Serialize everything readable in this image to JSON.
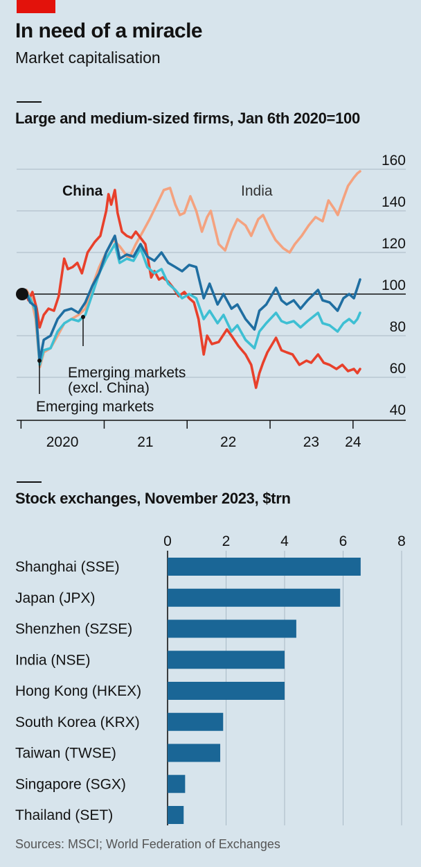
{
  "header": {
    "title": "In need of a miracle",
    "subtitle": "Market capitalisation"
  },
  "line_panel": {
    "title": "Large and medium-sized firms, Jan 6th 2020=100"
  },
  "bar_panel": {
    "title": "Stock exchanges, November 2023, $trn"
  },
  "footer": {
    "source": "Sources: MSCI; World Federation of Exchanges"
  },
  "colors": {
    "china": "#e8402b",
    "india": "#f4a27f",
    "em": "#1f6ea1",
    "em_ex_china": "#3ebfd3",
    "bar": "#1a6696",
    "grid": "#a8b9c5",
    "background": "#d7e4ec"
  },
  "chart_data": [
    {
      "type": "line",
      "title": "Large and medium-sized firms, Jan 6th 2020=100",
      "ylim": [
        40,
        160
      ],
      "yticks": [
        40,
        60,
        80,
        100,
        120,
        140,
        160
      ],
      "ytick_labels": [
        "40",
        "60",
        "80",
        "100",
        "120",
        "140",
        "160"
      ],
      "xlim": [
        "2020-01-06",
        "2024-02-01"
      ],
      "xtick_labels": [
        "2020",
        "21",
        "22",
        "23",
        "24"
      ],
      "base_value": 100,
      "series": [
        {
          "name": "China",
          "color_key": "china",
          "points": [
            [
              "2020-01-06",
              100
            ],
            [
              "2020-01-20",
              101
            ],
            [
              "2020-02-03",
              97
            ],
            [
              "2020-02-20",
              101
            ],
            [
              "2020-03-10",
              93
            ],
            [
              "2020-03-23",
              84
            ],
            [
              "2020-04-10",
              90
            ],
            [
              "2020-05-01",
              93
            ],
            [
              "2020-05-25",
              92
            ],
            [
              "2020-06-15",
              99
            ],
            [
              "2020-07-09",
              117
            ],
            [
              "2020-07-25",
              112
            ],
            [
              "2020-08-15",
              113
            ],
            [
              "2020-09-05",
              115
            ],
            [
              "2020-09-25",
              110
            ],
            [
              "2020-10-20",
              120
            ],
            [
              "2020-11-20",
              125
            ],
            [
              "2020-12-15",
              128
            ],
            [
              "2021-01-10",
              140
            ],
            [
              "2021-01-20",
              148
            ],
            [
              "2021-02-01",
              143
            ],
            [
              "2021-02-17",
              150
            ],
            [
              "2021-03-01",
              139
            ],
            [
              "2021-03-20",
              130
            ],
            [
              "2021-04-10",
              128
            ],
            [
              "2021-05-01",
              127
            ],
            [
              "2021-05-20",
              130
            ],
            [
              "2021-06-10",
              127
            ],
            [
              "2021-07-01",
              124
            ],
            [
              "2021-07-27",
              108
            ],
            [
              "2021-08-10",
              111
            ],
            [
              "2021-08-30",
              107
            ],
            [
              "2021-09-15",
              108
            ],
            [
              "2021-10-10",
              106
            ],
            [
              "2021-11-01",
              103
            ],
            [
              "2021-11-25",
              99
            ],
            [
              "2021-12-20",
              101
            ],
            [
              "2022-01-10",
              98
            ],
            [
              "2022-01-31",
              96
            ],
            [
              "2022-02-20",
              88
            ],
            [
              "2022-03-15",
              71
            ],
            [
              "2022-03-30",
              80
            ],
            [
              "2022-04-20",
              76
            ],
            [
              "2022-05-20",
              77
            ],
            [
              "2022-06-25",
              83
            ],
            [
              "2022-07-15",
              80
            ],
            [
              "2022-08-15",
              75
            ],
            [
              "2022-09-15",
              71
            ],
            [
              "2022-10-10",
              66
            ],
            [
              "2022-10-31",
              55
            ],
            [
              "2022-11-15",
              62
            ],
            [
              "2022-12-01",
              67
            ],
            [
              "2022-12-20",
              72
            ],
            [
              "2023-01-27",
              79
            ],
            [
              "2023-02-20",
              73
            ],
            [
              "2023-03-15",
              72
            ],
            [
              "2023-04-10",
              71
            ],
            [
              "2023-05-10",
              66
            ],
            [
              "2023-06-10",
              68
            ],
            [
              "2023-07-01",
              67
            ],
            [
              "2023-07-31",
              71
            ],
            [
              "2023-08-25",
              67
            ],
            [
              "2023-09-20",
              66
            ],
            [
              "2023-10-20",
              64
            ],
            [
              "2023-11-15",
              66
            ],
            [
              "2023-12-10",
              63
            ],
            [
              "2024-01-05",
              64
            ],
            [
              "2024-01-20",
              62
            ],
            [
              "2024-02-01",
              64
            ]
          ]
        },
        {
          "name": "India",
          "color_key": "india",
          "points": [
            [
              "2020-01-06",
              100
            ],
            [
              "2020-01-25",
              102
            ],
            [
              "2020-02-15",
              98
            ],
            [
              "2020-03-05",
              88
            ],
            [
              "2020-03-24",
              65
            ],
            [
              "2020-04-10",
              72
            ],
            [
              "2020-05-10",
              74
            ],
            [
              "2020-06-10",
              80
            ],
            [
              "2020-07-10",
              86
            ],
            [
              "2020-08-10",
              88
            ],
            [
              "2020-09-10",
              90
            ],
            [
              "2020-10-10",
              93
            ],
            [
              "2020-11-10",
              104
            ],
            [
              "2020-12-10",
              113
            ],
            [
              "2021-01-10",
              120
            ],
            [
              "2021-02-10",
              126
            ],
            [
              "2021-03-10",
              123
            ],
            [
              "2021-04-20",
              117
            ],
            [
              "2021-05-20",
              124
            ],
            [
              "2021-06-20",
              130
            ],
            [
              "2021-07-20",
              136
            ],
            [
              "2021-08-25",
              144
            ],
            [
              "2021-09-20",
              150
            ],
            [
              "2021-10-18",
              151
            ],
            [
              "2021-11-10",
              143
            ],
            [
              "2021-11-30",
              138
            ],
            [
              "2021-12-20",
              139
            ],
            [
              "2022-01-15",
              147
            ],
            [
              "2022-02-10",
              140
            ],
            [
              "2022-03-07",
              130
            ],
            [
              "2022-03-30",
              137
            ],
            [
              "2022-04-15",
              140
            ],
            [
              "2022-05-20",
              124
            ],
            [
              "2022-06-17",
              121
            ],
            [
              "2022-07-15",
              130
            ],
            [
              "2022-08-10",
              136
            ],
            [
              "2022-09-15",
              133
            ],
            [
              "2022-10-10",
              128
            ],
            [
              "2022-11-10",
              136
            ],
            [
              "2022-12-01",
              138
            ],
            [
              "2022-12-31",
              131
            ],
            [
              "2023-01-25",
              126
            ],
            [
              "2023-02-28",
              122
            ],
            [
              "2023-03-28",
              120
            ],
            [
              "2023-04-20",
              124
            ],
            [
              "2023-05-20",
              128
            ],
            [
              "2023-06-20",
              133
            ],
            [
              "2023-07-20",
              137
            ],
            [
              "2023-08-20",
              135
            ],
            [
              "2023-09-15",
              145
            ],
            [
              "2023-10-10",
              141
            ],
            [
              "2023-10-26",
              138
            ],
            [
              "2023-11-20",
              146
            ],
            [
              "2023-12-10",
              152
            ],
            [
              "2024-01-05",
              156
            ],
            [
              "2024-01-20",
              158
            ],
            [
              "2024-02-01",
              159
            ]
          ]
        },
        {
          "name": "Emerging markets",
          "color_key": "em",
          "points": [
            [
              "2020-01-06",
              100
            ],
            [
              "2020-01-20",
              102
            ],
            [
              "2020-02-10",
              96
            ],
            [
              "2020-03-05",
              94
            ],
            [
              "2020-03-23",
              68
            ],
            [
              "2020-04-10",
              78
            ],
            [
              "2020-05-10",
              80
            ],
            [
              "2020-06-10",
              88
            ],
            [
              "2020-07-10",
              92
            ],
            [
              "2020-08-10",
              93
            ],
            [
              "2020-09-10",
              91
            ],
            [
              "2020-10-10",
              96
            ],
            [
              "2020-11-10",
              104
            ],
            [
              "2020-12-10",
              110
            ],
            [
              "2021-01-10",
              120
            ],
            [
              "2021-02-17",
              128
            ],
            [
              "2021-03-10",
              117
            ],
            [
              "2021-04-10",
              119
            ],
            [
              "2021-05-10",
              118
            ],
            [
              "2021-06-10",
              124
            ],
            [
              "2021-07-10",
              118
            ],
            [
              "2021-08-10",
              116
            ],
            [
              "2021-09-10",
              120
            ],
            [
              "2021-10-10",
              115
            ],
            [
              "2021-11-10",
              113
            ],
            [
              "2021-12-10",
              111
            ],
            [
              "2022-01-10",
              114
            ],
            [
              "2022-02-10",
              113
            ],
            [
              "2022-03-15",
              98
            ],
            [
              "2022-04-10",
              105
            ],
            [
              "2022-05-15",
              95
            ],
            [
              "2022-06-10",
              100
            ],
            [
              "2022-07-15",
              93
            ],
            [
              "2022-08-10",
              95
            ],
            [
              "2022-09-15",
              88
            ],
            [
              "2022-10-24",
              83
            ],
            [
              "2022-11-15",
              92
            ],
            [
              "2022-12-15",
              95
            ],
            [
              "2023-01-27",
              103
            ],
            [
              "2023-02-20",
              97
            ],
            [
              "2023-03-15",
              95
            ],
            [
              "2023-04-15",
              97
            ],
            [
              "2023-05-15",
              93
            ],
            [
              "2023-06-15",
              97
            ],
            [
              "2023-07-31",
              102
            ],
            [
              "2023-08-20",
              97
            ],
            [
              "2023-09-20",
              96
            ],
            [
              "2023-10-25",
              92
            ],
            [
              "2023-11-20",
              98
            ],
            [
              "2023-12-15",
              100
            ],
            [
              "2024-01-05",
              98
            ],
            [
              "2024-01-20",
              103
            ],
            [
              "2024-02-01",
              107
            ]
          ]
        },
        {
          "name": "Emerging markets (excl. China)",
          "color_key": "em_ex_china",
          "points": [
            [
              "2020-01-06",
              100
            ],
            [
              "2020-01-20",
              101
            ],
            [
              "2020-02-10",
              98
            ],
            [
              "2020-03-05",
              92
            ],
            [
              "2020-03-23",
              66
            ],
            [
              "2020-04-10",
              73
            ],
            [
              "2020-05-10",
              74
            ],
            [
              "2020-06-10",
              82
            ],
            [
              "2020-07-10",
              86
            ],
            [
              "2020-08-10",
              88
            ],
            [
              "2020-09-10",
              87
            ],
            [
              "2020-10-10",
              90
            ],
            [
              "2020-11-10",
              100
            ],
            [
              "2020-12-10",
              110
            ],
            [
              "2021-01-10",
              117
            ],
            [
              "2021-02-17",
              124
            ],
            [
              "2021-03-10",
              115
            ],
            [
              "2021-04-10",
              117
            ],
            [
              "2021-05-10",
              116
            ],
            [
              "2021-06-10",
              122
            ],
            [
              "2021-07-10",
              113
            ],
            [
              "2021-08-10",
              110
            ],
            [
              "2021-09-10",
              112
            ],
            [
              "2021-10-10",
              105
            ],
            [
              "2021-11-10",
              102
            ],
            [
              "2021-12-10",
              98
            ],
            [
              "2022-01-10",
              100
            ],
            [
              "2022-02-10",
              98
            ],
            [
              "2022-03-15",
              88
            ],
            [
              "2022-04-10",
              92
            ],
            [
              "2022-05-15",
              86
            ],
            [
              "2022-06-10",
              90
            ],
            [
              "2022-07-15",
              82
            ],
            [
              "2022-08-10",
              85
            ],
            [
              "2022-09-15",
              78
            ],
            [
              "2022-10-24",
              74
            ],
            [
              "2022-11-15",
              82
            ],
            [
              "2022-12-15",
              86
            ],
            [
              "2023-01-27",
              91
            ],
            [
              "2023-02-20",
              87
            ],
            [
              "2023-03-15",
              86
            ],
            [
              "2023-04-15",
              87
            ],
            [
              "2023-05-15",
              84
            ],
            [
              "2023-06-15",
              87
            ],
            [
              "2023-07-31",
              91
            ],
            [
              "2023-08-20",
              86
            ],
            [
              "2023-09-20",
              85
            ],
            [
              "2023-10-25",
              82
            ],
            [
              "2023-11-20",
              86
            ],
            [
              "2023-12-15",
              88
            ],
            [
              "2024-01-05",
              86
            ],
            [
              "2024-01-20",
              88
            ],
            [
              "2024-02-01",
              91
            ]
          ]
        }
      ]
    },
    {
      "type": "bar",
      "orientation": "horizontal",
      "title": "Stock exchanges, November 2023, $trn",
      "xlim": [
        0,
        8
      ],
      "xticks": [
        0,
        2,
        4,
        6,
        8
      ],
      "xtick_labels": [
        "0",
        "2",
        "4",
        "6",
        "8"
      ],
      "categories": [
        "Shanghai (SSE)",
        "Japan (JPX)",
        "Shenzhen (SZSE)",
        "India (NSE)",
        "Hong Kong (HKEX)",
        "South Korea (KRX)",
        "Taiwan (TWSE)",
        "Singapore (SGX)",
        "Thailand (SET)"
      ],
      "values": [
        6.6,
        5.9,
        4.4,
        4.0,
        4.0,
        1.9,
        1.8,
        0.6,
        0.55
      ]
    }
  ]
}
